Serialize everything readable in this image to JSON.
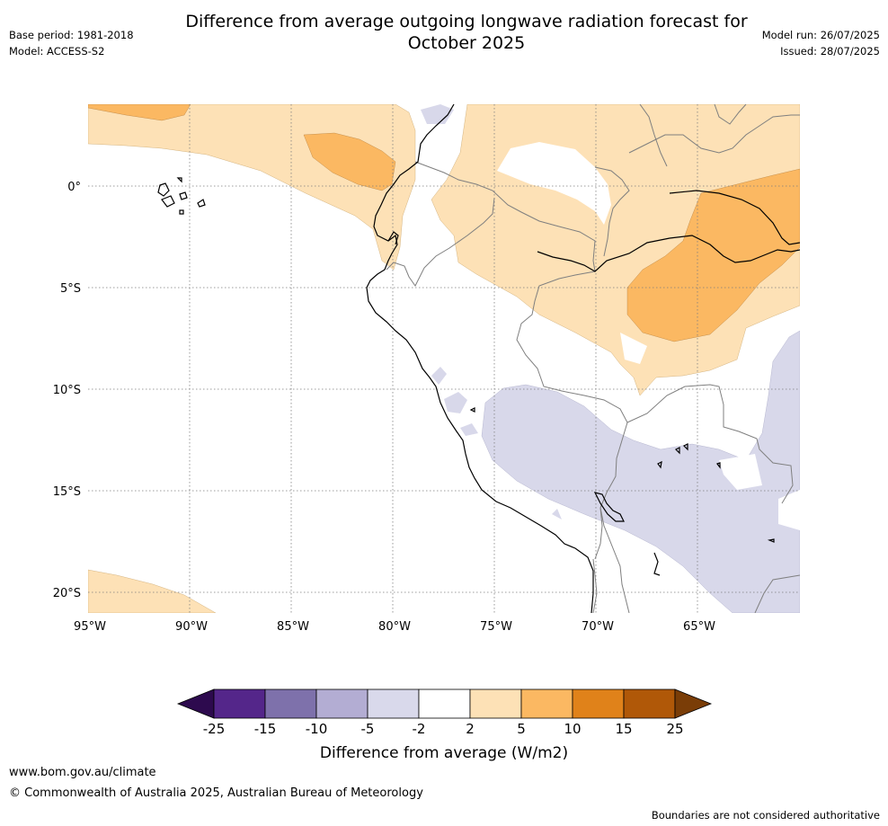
{
  "header": {
    "title_line1": "Difference from average outgoing longwave radiation forecast for",
    "title_line2": "October 2025",
    "base_period": "Base period: 1981-2018",
    "model": "Model: ACCESS-S2",
    "model_run": "Model run: 26/07/2025",
    "issued": "Issued: 28/07/2025"
  },
  "map": {
    "lat_labels": [
      "0°",
      "5°S",
      "10°S",
      "15°S",
      "20°S"
    ],
    "lon_labels": [
      "95°W",
      "90°W",
      "85°W",
      "80°W",
      "75°W",
      "70°W",
      "65°W"
    ],
    "colors": {
      "light_orange": "#fde1b6",
      "mid_orange": "#fbb862",
      "light_purple": "#d8d8ea",
      "coast": "#000000",
      "border": "#7f7f7f",
      "grid": "#7f7f7f"
    }
  },
  "colorbar": {
    "ticks": [
      "-25",
      "-15",
      "-10",
      "-5",
      "-2",
      "2",
      "5",
      "10",
      "15",
      "25"
    ],
    "colors": [
      "#2d0a4e",
      "#54268a",
      "#7e71ab",
      "#b3add3",
      "#d9d9eb",
      "#ffffff",
      "#fde1b6",
      "#fbb862",
      "#e0821a",
      "#b05808",
      "#7a3d07"
    ],
    "title": "Difference from average (W/m2)"
  },
  "footer": {
    "url": "www.bom.gov.au/climate",
    "copyright": "© Commonwealth of Australia 2025, Australian Bureau of Meteorology",
    "disclaimer": "Boundaries are not considered authoritative"
  }
}
